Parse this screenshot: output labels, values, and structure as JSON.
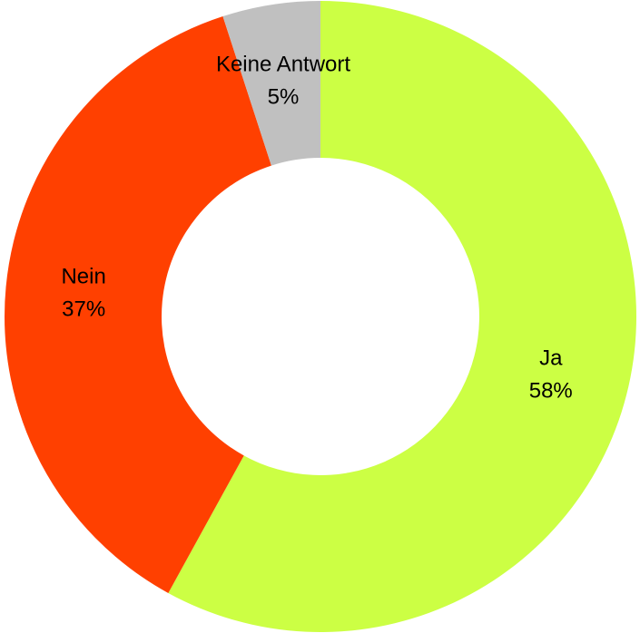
{
  "chart_data": {
    "type": "donut",
    "categories": [
      "Ja",
      "Nein",
      "Keine Antwort"
    ],
    "values": [
      58,
      37,
      5
    ],
    "value_labels": [
      "58%",
      "37%",
      "5%"
    ],
    "colors": [
      "#ccff44",
      "#ff4000",
      "#c0c0c0"
    ]
  }
}
